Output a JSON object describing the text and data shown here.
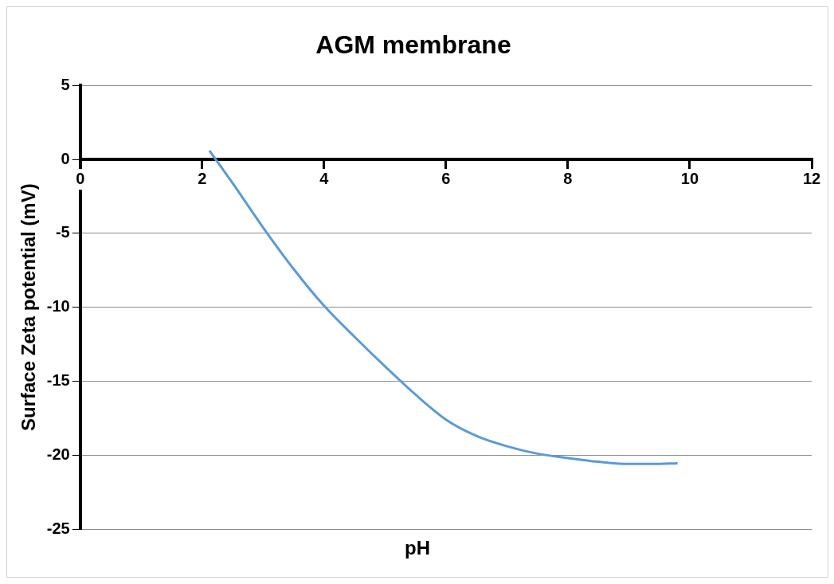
{
  "chart_data": {
    "type": "line",
    "title": "AGM membrane",
    "xlabel": "pH",
    "ylabel": "Surface Zeta potential (mV)",
    "x": [
      2.12,
      2.5,
      3,
      3.5,
      4,
      4.5,
      5,
      5.5,
      6,
      6.5,
      7,
      7.5,
      8,
      8.5,
      9,
      9.4,
      9.8
    ],
    "series": [
      {
        "color": "#5b9bd5",
        "values": [
          0.6,
          -1.6,
          -4.6,
          -7.4,
          -9.9,
          -12.0,
          -14.0,
          -15.9,
          -17.6,
          -18.7,
          -19.4,
          -19.9,
          -20.2,
          -20.45,
          -20.6,
          -20.6,
          -20.55
        ]
      }
    ],
    "xlim": [
      0,
      12
    ],
    "xticks": [
      0,
      2,
      4,
      6,
      8,
      10,
      12
    ],
    "ylim": [
      -25,
      5
    ],
    "yticks": [
      -25,
      -20,
      -15,
      -10,
      -5,
      0,
      5
    ],
    "grid": "y",
    "legend": false,
    "marker": "none",
    "line_style": "solid"
  }
}
